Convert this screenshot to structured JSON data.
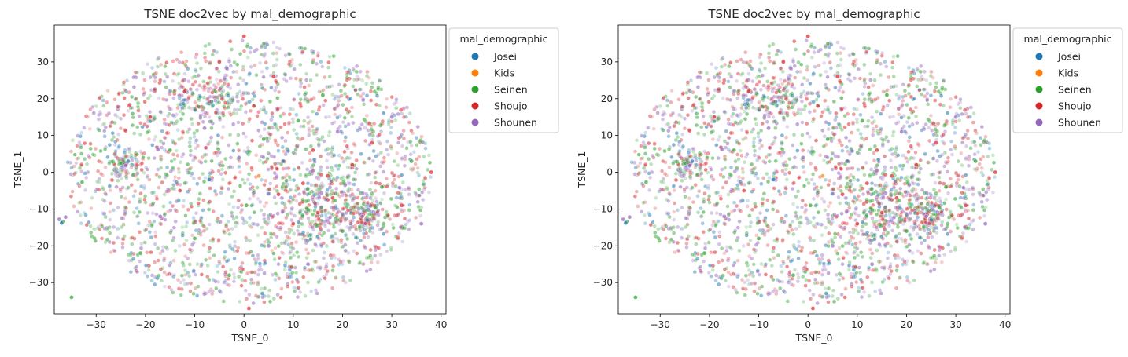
{
  "chart_data": [
    {
      "type": "scatter",
      "title": "TSNE doc2vec by mal_demographic",
      "xlabel": "TSNE_0",
      "ylabel": "TSNE_1",
      "xlim": [
        -38.5,
        41
      ],
      "ylim": [
        -38.5,
        40
      ],
      "xticks": [
        "−30",
        "−20",
        "−10",
        "0",
        "10",
        "20",
        "30",
        "40"
      ],
      "xtick_values": [
        -30,
        -20,
        -10,
        0,
        10,
        20,
        30,
        40
      ],
      "yticks": [
        "−30",
        "−20",
        "−10",
        "0",
        "10",
        "20",
        "30"
      ],
      "ytick_values": [
        -30,
        -20,
        -10,
        0,
        10,
        20,
        30
      ],
      "grid": false,
      "legend": {
        "title": "mal_demographic",
        "placement": "outside-upper-right",
        "entries": [
          {
            "label": "Josei",
            "color": "#1f77b4"
          },
          {
            "label": "Kids",
            "color": "#ff7f0e"
          },
          {
            "label": "Seinen",
            "color": "#2ca02c"
          },
          {
            "label": "Shoujo",
            "color": "#d62728"
          },
          {
            "label": "Shounen",
            "color": "#9467bd"
          }
        ]
      },
      "points": [
        {
          "x": -37.5,
          "y": -12.8,
          "series": "Shounen"
        },
        {
          "x": -36.8,
          "y": -13.4,
          "series": "Seinen"
        },
        {
          "x": -36.2,
          "y": -12.2,
          "series": "Shounen"
        },
        {
          "x": -37.0,
          "y": -13.8,
          "series": "Josei"
        },
        {
          "x": -35.0,
          "y": -34.0,
          "series": "Seinen"
        },
        {
          "x": -25.0,
          "y": 2.5,
          "series": "Seinen"
        },
        {
          "x": -24.0,
          "y": 1.8,
          "series": "Shounen"
        },
        {
          "x": -23.5,
          "y": 3.0,
          "series": "Josei"
        },
        {
          "x": -21.0,
          "y": -22.0,
          "series": "Seinen"
        },
        {
          "x": -19.0,
          "y": 15.0,
          "series": "Shoujo"
        },
        {
          "x": -17.0,
          "y": -12.0,
          "series": "Shounen"
        },
        {
          "x": -15.0,
          "y": 6.0,
          "series": "Seinen"
        },
        {
          "x": -13.0,
          "y": -5.0,
          "series": "Shoujo"
        },
        {
          "x": -12.0,
          "y": 22.0,
          "series": "Shoujo"
        },
        {
          "x": -10.0,
          "y": -18.0,
          "series": "Seinen"
        },
        {
          "x": -8.0,
          "y": 12.0,
          "series": "Shounen"
        },
        {
          "x": -7.0,
          "y": -2.0,
          "series": "Josei"
        },
        {
          "x": -5.0,
          "y": 30.0,
          "series": "Shoujo"
        },
        {
          "x": -3.0,
          "y": -28.0,
          "series": "Seinen"
        },
        {
          "x": -1.0,
          "y": 4.0,
          "series": "Shounen"
        },
        {
          "x": 0.5,
          "y": -9.0,
          "series": "Seinen"
        },
        {
          "x": 2.0,
          "y": 18.0,
          "series": "Shoujo"
        },
        {
          "x": 3.0,
          "y": -1.0,
          "series": "Kids"
        },
        {
          "x": 4.0,
          "y": 9.0,
          "series": "Seinen"
        },
        {
          "x": 5.0,
          "y": -20.0,
          "series": "Shounen"
        },
        {
          "x": 6.0,
          "y": 26.0,
          "series": "Shoujo"
        },
        {
          "x": 7.0,
          "y": -6.0,
          "series": "Shoujo"
        },
        {
          "x": 8.0,
          "y": 3.0,
          "series": "Josei"
        },
        {
          "x": 10.0,
          "y": -14.0,
          "series": "Shoujo"
        },
        {
          "x": 11.0,
          "y": 14.0,
          "series": "Seinen"
        },
        {
          "x": 12.0,
          "y": -3.0,
          "series": "Shoujo"
        },
        {
          "x": 13.0,
          "y": -25.0,
          "series": "Shounen"
        },
        {
          "x": 14.0,
          "y": 6.0,
          "series": "Shoujo"
        },
        {
          "x": 15.0,
          "y": -11.0,
          "series": "Shoujo"
        },
        {
          "x": 16.0,
          "y": 21.0,
          "series": "Seinen"
        },
        {
          "x": 17.0,
          "y": -1.0,
          "series": "Shoujo"
        },
        {
          "x": 18.0,
          "y": -7.0,
          "series": "Shoujo"
        },
        {
          "x": 19.0,
          "y": 11.0,
          "series": "Shounen"
        },
        {
          "x": 20.0,
          "y": -16.0,
          "series": "Seinen"
        },
        {
          "x": 22.0,
          "y": 2.0,
          "series": "Shoujo"
        },
        {
          "x": 24.0,
          "y": -12.0,
          "series": "Shounen"
        },
        {
          "x": 25.0,
          "y": -13.0,
          "series": "Josei"
        },
        {
          "x": 26.0,
          "y": 8.0,
          "series": "Shoujo"
        },
        {
          "x": 28.0,
          "y": -4.0,
          "series": "Seinen"
        },
        {
          "x": 30.0,
          "y": 15.0,
          "series": "Shounen"
        },
        {
          "x": 32.0,
          "y": -9.0,
          "series": "Shoujo"
        },
        {
          "x": 34.0,
          "y": 3.0,
          "series": "Seinen"
        },
        {
          "x": 36.0,
          "y": -14.0,
          "series": "Shounen"
        },
        {
          "x": 38.0,
          "y": 0.0,
          "series": "Shoujo"
        },
        {
          "x": 0.0,
          "y": 37.0,
          "series": "Shoujo"
        },
        {
          "x": 1.0,
          "y": -37.0,
          "series": "Shoujo"
        }
      ]
    },
    {
      "type": "scatter",
      "title": "TSNE doc2vec by mal_demographic",
      "xlabel": "TSNE_0",
      "ylabel": "TSNE_1",
      "xlim": [
        -38.5,
        41
      ],
      "ylim": [
        -38.5,
        40
      ],
      "xticks": [
        "−30",
        "−20",
        "−10",
        "0",
        "10",
        "20",
        "30",
        "40"
      ],
      "xtick_values": [
        -30,
        -20,
        -10,
        0,
        10,
        20,
        30,
        40
      ],
      "yticks": [
        "−30",
        "−20",
        "−10",
        "0",
        "10",
        "20",
        "30"
      ],
      "ytick_values": [
        -30,
        -20,
        -10,
        0,
        10,
        20,
        30
      ],
      "grid": false,
      "legend": {
        "title": "mal_demographic",
        "placement": "outside-upper-right",
        "entries": [
          {
            "label": "Josei",
            "color": "#1f77b4"
          },
          {
            "label": "Kids",
            "color": "#ff7f0e"
          },
          {
            "label": "Seinen",
            "color": "#2ca02c"
          },
          {
            "label": "Shoujo",
            "color": "#d62728"
          },
          {
            "label": "Shounen",
            "color": "#9467bd"
          }
        ]
      },
      "points": [
        {
          "x": -37.5,
          "y": -12.8,
          "series": "Shounen"
        },
        {
          "x": -36.8,
          "y": -13.4,
          "series": "Seinen"
        },
        {
          "x": -36.2,
          "y": -12.2,
          "series": "Shounen"
        },
        {
          "x": -37.0,
          "y": -13.8,
          "series": "Josei"
        },
        {
          "x": -35.0,
          "y": -34.0,
          "series": "Seinen"
        },
        {
          "x": -25.0,
          "y": 2.5,
          "series": "Seinen"
        },
        {
          "x": -24.0,
          "y": 1.8,
          "series": "Shounen"
        },
        {
          "x": -23.5,
          "y": 3.0,
          "series": "Josei"
        },
        {
          "x": -21.0,
          "y": -22.0,
          "series": "Seinen"
        },
        {
          "x": -19.0,
          "y": 15.0,
          "series": "Shoujo"
        },
        {
          "x": -17.0,
          "y": -12.0,
          "series": "Shounen"
        },
        {
          "x": -15.0,
          "y": 6.0,
          "series": "Seinen"
        },
        {
          "x": -13.0,
          "y": -5.0,
          "series": "Shoujo"
        },
        {
          "x": -12.0,
          "y": 22.0,
          "series": "Shoujo"
        },
        {
          "x": -10.0,
          "y": -18.0,
          "series": "Seinen"
        },
        {
          "x": -8.0,
          "y": 12.0,
          "series": "Shounen"
        },
        {
          "x": -7.0,
          "y": -2.0,
          "series": "Josei"
        },
        {
          "x": -5.0,
          "y": 30.0,
          "series": "Shoujo"
        },
        {
          "x": -3.0,
          "y": -28.0,
          "series": "Seinen"
        },
        {
          "x": -1.0,
          "y": 4.0,
          "series": "Shounen"
        },
        {
          "x": 0.5,
          "y": -9.0,
          "series": "Seinen"
        },
        {
          "x": 2.0,
          "y": 18.0,
          "series": "Shoujo"
        },
        {
          "x": 3.0,
          "y": -1.0,
          "series": "Kids"
        },
        {
          "x": 4.0,
          "y": 9.0,
          "series": "Seinen"
        },
        {
          "x": 5.0,
          "y": -20.0,
          "series": "Shounen"
        },
        {
          "x": 6.0,
          "y": 26.0,
          "series": "Shoujo"
        },
        {
          "x": 7.0,
          "y": -6.0,
          "series": "Shoujo"
        },
        {
          "x": 8.0,
          "y": 3.0,
          "series": "Josei"
        },
        {
          "x": 10.0,
          "y": -14.0,
          "series": "Shoujo"
        },
        {
          "x": 11.0,
          "y": 14.0,
          "series": "Seinen"
        },
        {
          "x": 12.0,
          "y": -3.0,
          "series": "Shoujo"
        },
        {
          "x": 13.0,
          "y": -25.0,
          "series": "Shounen"
        },
        {
          "x": 14.0,
          "y": 6.0,
          "series": "Shoujo"
        },
        {
          "x": 15.0,
          "y": -11.0,
          "series": "Shoujo"
        },
        {
          "x": 16.0,
          "y": 21.0,
          "series": "Seinen"
        },
        {
          "x": 17.0,
          "y": -1.0,
          "series": "Shoujo"
        },
        {
          "x": 18.0,
          "y": -7.0,
          "series": "Shoujo"
        },
        {
          "x": 19.0,
          "y": 11.0,
          "series": "Shounen"
        },
        {
          "x": 20.0,
          "y": -16.0,
          "series": "Seinen"
        },
        {
          "x": 22.0,
          "y": 2.0,
          "series": "Shoujo"
        },
        {
          "x": 24.0,
          "y": -12.0,
          "series": "Shounen"
        },
        {
          "x": 25.0,
          "y": -13.0,
          "series": "Josei"
        },
        {
          "x": 26.0,
          "y": 8.0,
          "series": "Shoujo"
        },
        {
          "x": 28.0,
          "y": -4.0,
          "series": "Seinen"
        },
        {
          "x": 30.0,
          "y": 15.0,
          "series": "Shounen"
        },
        {
          "x": 32.0,
          "y": -9.0,
          "series": "Shoujo"
        },
        {
          "x": 34.0,
          "y": 3.0,
          "series": "Seinen"
        },
        {
          "x": 36.0,
          "y": -14.0,
          "series": "Shounen"
        },
        {
          "x": 38.0,
          "y": 0.0,
          "series": "Shoujo"
        },
        {
          "x": 0.0,
          "y": 37.0,
          "series": "Shoujo"
        },
        {
          "x": 1.0,
          "y": -37.0,
          "series": "Shoujo"
        }
      ]
    }
  ]
}
